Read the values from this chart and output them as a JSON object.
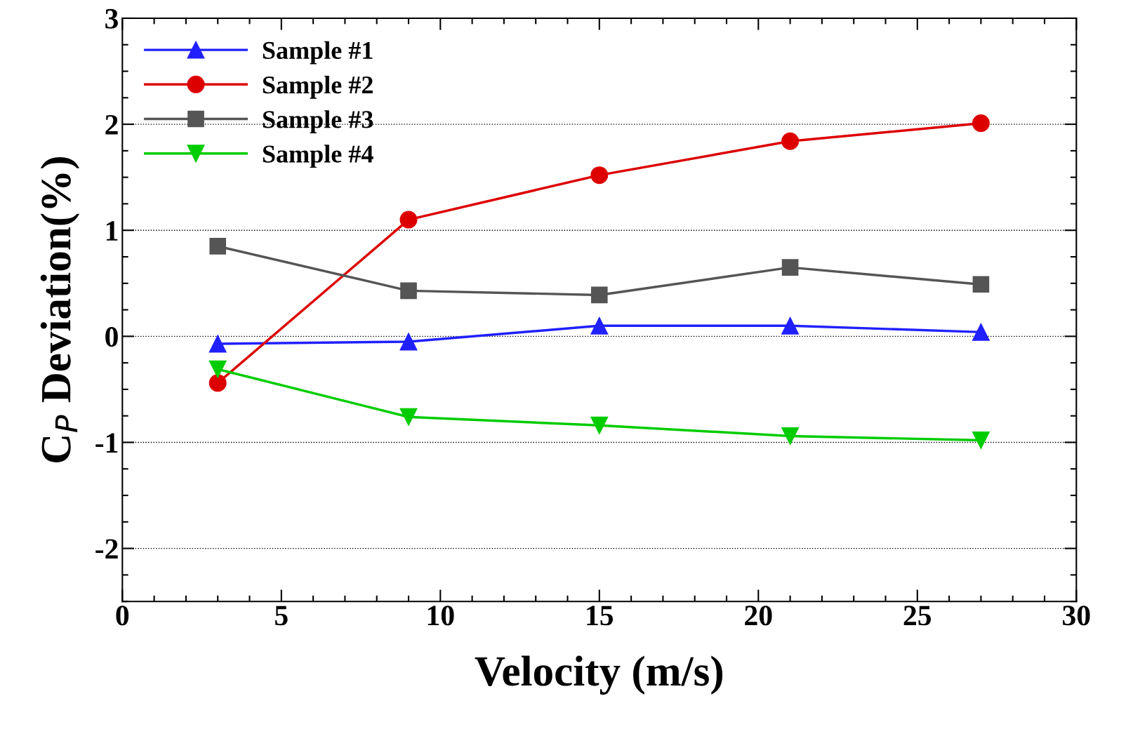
{
  "chart_data": {
    "type": "line",
    "xlabel": "Velocity (m/s)",
    "ylabel": "C$_{P}$ Deviation(%)",
    "x": [
      3,
      9,
      15,
      21,
      27
    ],
    "xlim": [
      0,
      30
    ],
    "xticks": [
      0,
      5,
      10,
      15,
      20,
      25,
      30
    ],
    "ylim": [
      -2.5,
      3
    ],
    "yticks": [
      -2,
      -1,
      0,
      1,
      2,
      3
    ],
    "grid": "y",
    "legend": "top left",
    "line_style": "solid",
    "series": [
      {
        "name": "Sample #1",
        "color": "#2020ff",
        "marker": "triangle",
        "values": [
          -0.07,
          -0.05,
          0.1,
          0.1,
          0.04
        ]
      },
      {
        "name": "Sample #2",
        "color": "#dd0000",
        "marker": "circle",
        "values": [
          -0.44,
          1.1,
          1.52,
          1.84,
          2.01
        ]
      },
      {
        "name": "Sample #3",
        "color": "#555555",
        "marker": "square",
        "values": [
          0.85,
          0.43,
          0.39,
          0.65,
          0.49
        ]
      },
      {
        "name": "Sample #4",
        "color": "#00cc00",
        "marker": "triangle_down",
        "values": [
          -0.31,
          -0.76,
          -0.84,
          -0.94,
          -0.98
        ]
      }
    ]
  }
}
